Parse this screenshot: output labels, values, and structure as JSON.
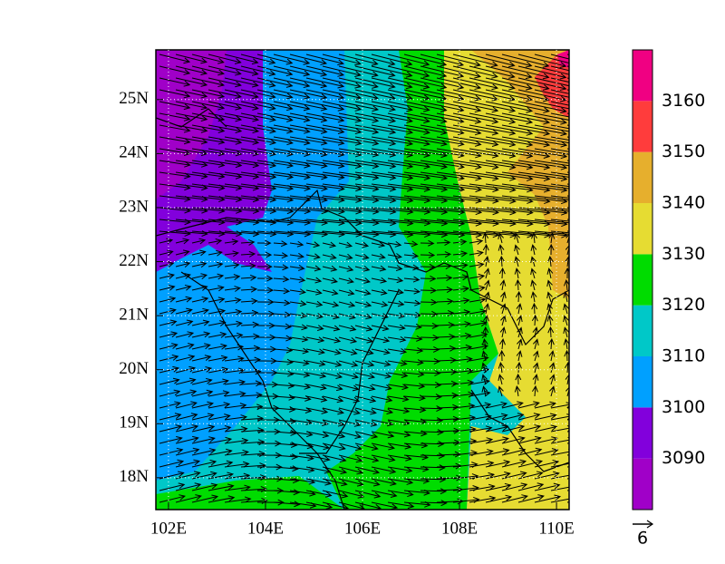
{
  "map": {
    "xlim": [
      101.74,
      110.26
    ],
    "ylim": [
      17.41,
      25.92
    ],
    "lon_ticks": [
      {
        "value": 102,
        "label": "102E"
      },
      {
        "value": 104,
        "label": "104E"
      },
      {
        "value": 106,
        "label": "106E"
      },
      {
        "value": 108,
        "label": "108E"
      },
      {
        "value": 110,
        "label": "110E"
      }
    ],
    "lat_ticks": [
      {
        "value": 18,
        "label": "18N"
      },
      {
        "value": 19,
        "label": "19N"
      },
      {
        "value": 20,
        "label": "20N"
      },
      {
        "value": 21,
        "label": "21N"
      },
      {
        "value": 22,
        "label": "22N"
      },
      {
        "value": 23,
        "label": "23N"
      },
      {
        "value": 24,
        "label": "24N"
      },
      {
        "value": 25,
        "label": "25N"
      }
    ],
    "colorbar": {
      "levels": [
        3090,
        3100,
        3110,
        3120,
        3130,
        3140,
        3150,
        3160
      ],
      "colors": [
        "#a000c8",
        "#8200dc",
        "#00a0ff",
        "#00c8c8",
        "#00dc00",
        "#e6dc32",
        "#e6af2d",
        "#ff3c3c",
        "#f00082"
      ]
    },
    "vector_reference": "6"
  }
}
